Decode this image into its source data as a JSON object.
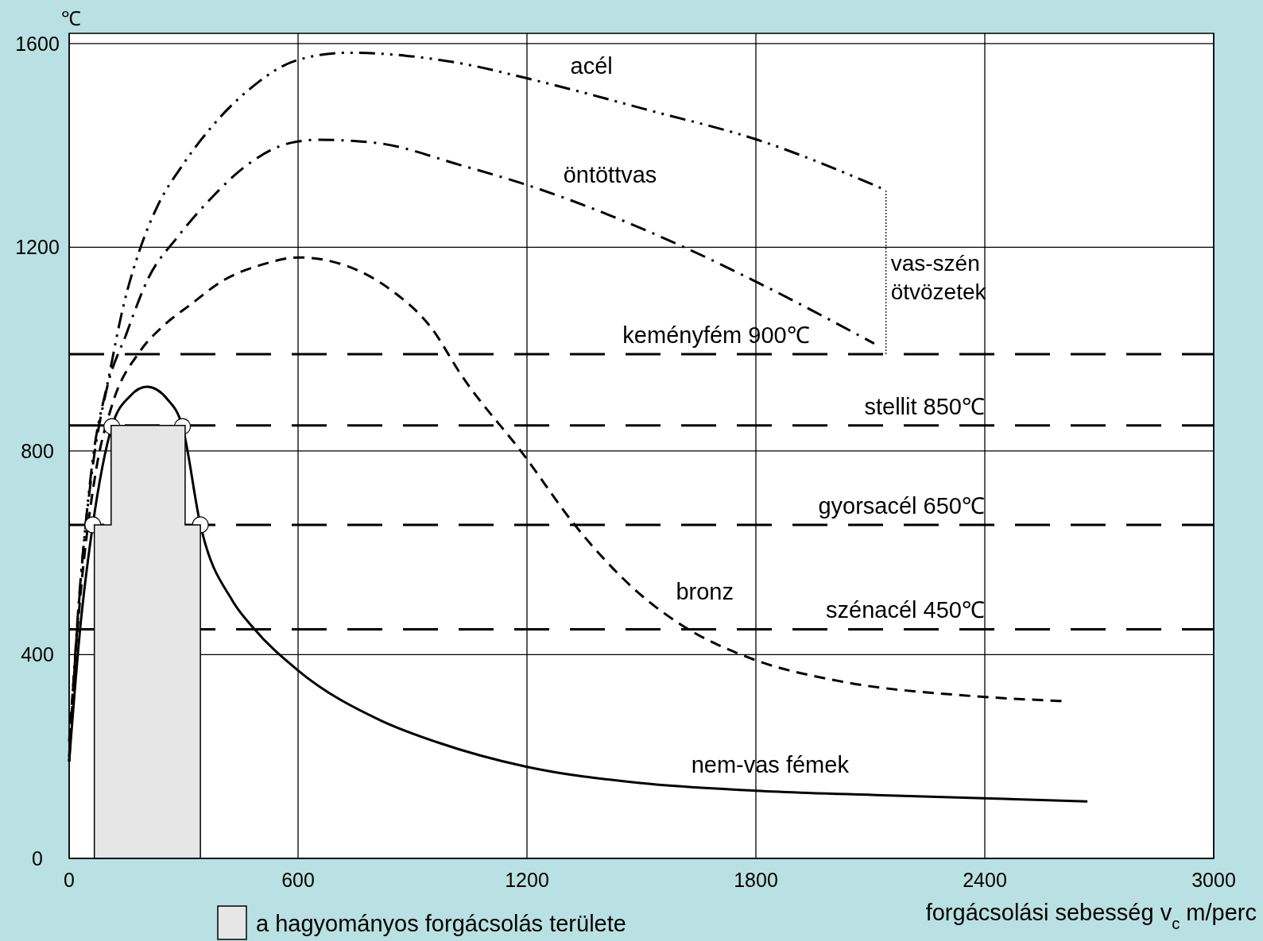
{
  "chart_data": {
    "type": "line",
    "xlabel": "forgácsolási sebesség v$_{c}$  m/perc",
    "ylabel": "℃",
    "xlim": [
      0,
      3000
    ],
    "xticks": [
      0,
      600,
      1200,
      1800,
      2400,
      3000
    ],
    "ylim": [
      0,
      1620
    ],
    "yticks": [
      0,
      400,
      800,
      1200,
      1600
    ],
    "grid": true,
    "legend": "bottom left",
    "series": [
      {
        "type": "area",
        "name": "a hagyományos forgácsolás területe",
        "color": "#e6e6e6",
        "x": [
          66,
          66,
          110,
          110,
          304,
          304,
          344,
          344
        ],
        "values": [
          0,
          655,
          655,
          850,
          850,
          655,
          655,
          0
        ]
      },
      {
        "name": "acél",
        "color": "#000000",
        "line_style": "dashdotdot",
        "x": [
          0,
          20,
          60,
          104,
          142,
          185,
          231,
          298,
          373,
          469,
          596,
          729,
          1027,
          1204,
          1525,
          1804,
          2141
        ],
        "values": [
          190,
          440,
          772,
          945,
          1084,
          1195,
          1280,
          1362,
          1436,
          1508,
          1567,
          1582,
          1561,
          1531,
          1468,
          1411,
          1312
        ]
      },
      {
        "name": "öntöttvas",
        "color": "#000000",
        "line_style": "dashdot",
        "x": [
          0,
          25,
          60,
          97,
          149,
          208,
          283,
          373,
          469,
          581,
          654,
          804,
          1027,
          1197,
          1621,
          1804,
          2110
        ],
        "values": [
          200,
          500,
          760,
          917,
          1028,
          1140,
          1219,
          1297,
          1363,
          1405,
          1411,
          1405,
          1361,
          1323,
          1197,
          1131,
          1011
        ]
      },
      {
        "name": "bronz",
        "color": "#000000",
        "line_style": "dashed",
        "x": [
          0,
          30,
          70,
          112,
          185,
          246,
          321,
          402,
          506,
          602,
          729,
          842,
          952,
          1027,
          1194,
          1325,
          1496,
          1612,
          1793,
          2027,
          2346,
          2602
        ],
        "values": [
          230,
          520,
          760,
          889,
          995,
          1045,
          1089,
          1134,
          1166,
          1180,
          1163,
          1117,
          1039,
          950,
          790,
          655,
          519,
          455,
          391,
          347,
          320,
          309
        ]
      },
      {
        "name": "nem-vas fémek",
        "color": "#000000",
        "line_style": "solid",
        "x": [
          0,
          30,
          62,
          112,
          160,
          204,
          257,
          297,
          344,
          428,
          481,
          600,
          819,
          965,
          1198,
          1496,
          1798,
          2133,
          2669
        ],
        "values": [
          190,
          460,
          655,
          848,
          908,
          926,
          902,
          848,
          655,
          506,
          454,
          369,
          270,
          228,
          180,
          148,
          133,
          124,
          112
        ]
      },
      {
        "color": "#000000",
        "line_style": "dotted",
        "x": [
          2141,
          2141
        ],
        "values": [
          990,
          1312
        ]
      },
      {
        "type": "scatter",
        "color": "#ffffff",
        "marker": "circle",
        "x": [
          62,
          112,
          297,
          344
        ],
        "values": [
          655,
          848,
          848,
          655
        ]
      }
    ],
    "ref_lines": [
      {
        "axis": "y",
        "value": 990,
        "label": "keményfém 900℃",
        "line_style": "dashed",
        "color": "#000000"
      },
      {
        "axis": "y",
        "value": 850,
        "label": "stellit 850℃",
        "line_style": "dashed",
        "color": "#000000"
      },
      {
        "axis": "y",
        "value": 655,
        "label": "gyorsacél 650℃",
        "line_style": "dashed",
        "color": "#000000"
      },
      {
        "axis": "y",
        "value": 450,
        "label": "szénacél 450℃",
        "line_style": "dashed",
        "color": "#000000"
      }
    ],
    "annotations": [
      {
        "text": "vas-szén ötvözetek",
        "x": 2141,
        "y": 1125
      }
    ]
  }
}
